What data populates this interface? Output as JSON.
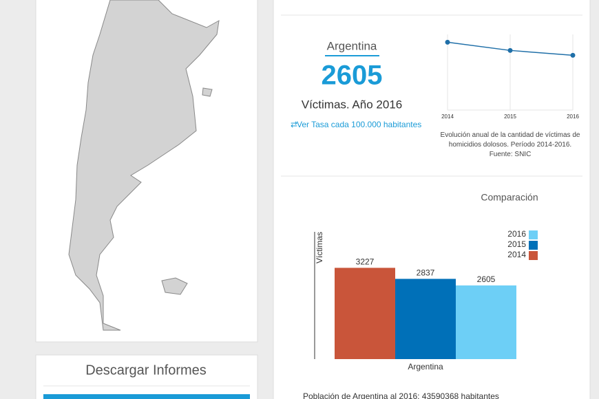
{
  "stat": {
    "title": "Argentina",
    "value": 2605,
    "caption": "Víctimas. Año 2016",
    "link": "Ver Tasa cada 100.000 habitantes"
  },
  "line_chart": {
    "type": "line",
    "x": [
      "2014",
      "2015",
      "2016"
    ],
    "values": [
      3227,
      2837,
      2605
    ],
    "color": "#1f6fa8",
    "ylim": [
      0,
      3600
    ],
    "caption": "Evolución anual de la cantidad de víctimas de homicidios dolosos. Período 2014-2016. Fuente: SNIC"
  },
  "bar_chart": {
    "type": "bar",
    "title": "Comparación",
    "y_label": "Víctimas",
    "categories": [
      "Argentina"
    ],
    "ylim": [
      0,
      4500
    ],
    "series": [
      {
        "name": "2014",
        "color": "#c9553a",
        "values": [
          3227
        ]
      },
      {
        "name": "2015",
        "color": "#0070b8",
        "values": [
          2837
        ]
      },
      {
        "name": "2016",
        "color": "#6dcff6",
        "values": [
          2605
        ]
      }
    ]
  },
  "footnote": "Población de Argentina al 2016: 43590368 habitantes",
  "download": {
    "title": "Descargar Informes"
  }
}
